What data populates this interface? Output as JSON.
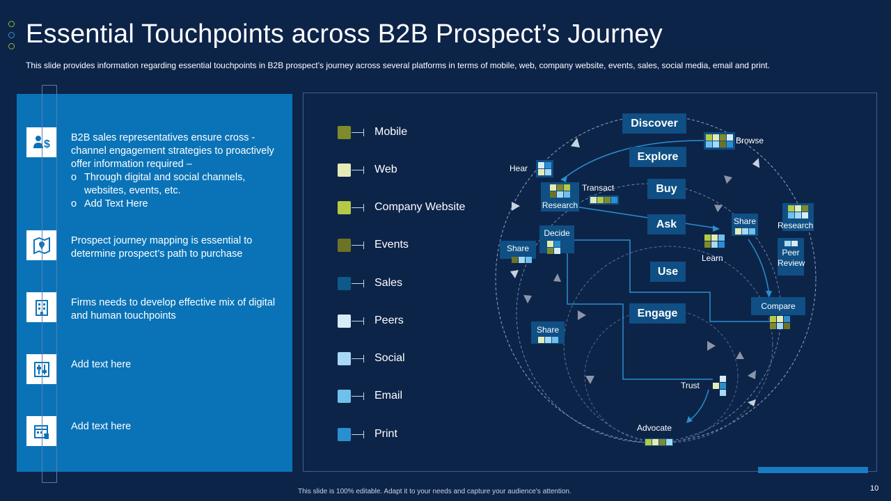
{
  "header": {
    "title": "Essential Touchpoints across B2B Prospect’s Journey",
    "subtitle": "This slide provides information regarding essential touchpoints in B2B prospect’s journey across several platforms in terms of mobile, web, company website, events, sales, social media, email and print."
  },
  "left_panel": {
    "items": [
      {
        "icon": "person-dollar-icon",
        "text": "B2B sales representatives ensure cross - channel engagement strategies to proactively offer information required –",
        "bullets": [
          "Through digital and social channels, websites, events, etc.",
          "Add Text Here"
        ]
      },
      {
        "icon": "map-pin-icon",
        "text": "Prospect journey mapping is essential to determine prospect’s path to purchase"
      },
      {
        "icon": "building-icon",
        "text": "Firms needs to develop effective mix of digital and human touchpoints"
      },
      {
        "icon": "sliders-icon",
        "text": "Add text here"
      },
      {
        "icon": "calendar-hand-icon",
        "text": "Add text here"
      }
    ]
  },
  "legend": [
    {
      "label": "Mobile",
      "color": "#7f8b2b"
    },
    {
      "label": "Web",
      "color": "#e5ebb7"
    },
    {
      "label": "Company Website",
      "color": "#b6c944"
    },
    {
      "label": "Events",
      "color": "#6d7325"
    },
    {
      "label": "Sales",
      "color": "#0d5a8a"
    },
    {
      "label": "Peers",
      "color": "#d7ecf8"
    },
    {
      "label": "Social",
      "color": "#a7d9f4"
    },
    {
      "label": "Email",
      "color": "#6fc0ec"
    },
    {
      "label": "Print",
      "color": "#2a8fd0"
    }
  ],
  "stages": [
    "Discover",
    "Explore",
    "Buy",
    "Ask",
    "Use",
    "Engage"
  ],
  "touchpoints": {
    "browse": "Browse",
    "hear": "Hear",
    "transact": "Transact",
    "research_left": "Research",
    "research_right": "Research",
    "decide": "Decide",
    "share_top": "Share",
    "share_left": "Share",
    "share_mid": "Share",
    "learn": "Learn",
    "peer_review": "Peer Review",
    "compare": "Compare",
    "trust": "Trust",
    "advocate": "Advocate"
  },
  "footer": {
    "note": "This slide is 100% editable. Adapt it to your needs and capture your audience's attention.",
    "page": "10"
  }
}
